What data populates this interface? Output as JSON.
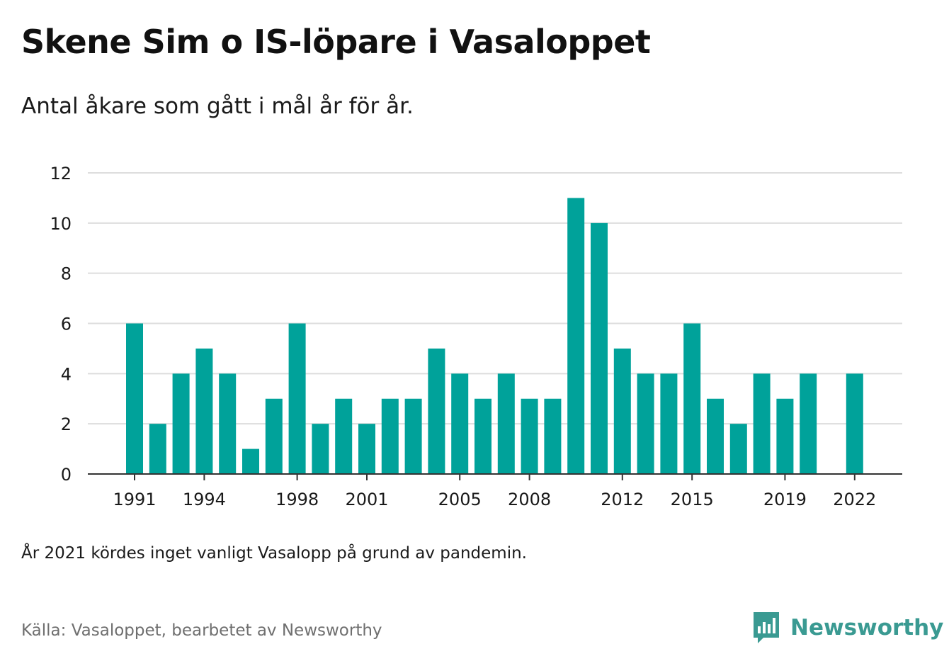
{
  "header": {
    "title": "Skene Sim o IS-löpare i Vasaloppet",
    "subtitle": "Antal åkare som gått i mål år för år."
  },
  "footer": {
    "note": "År 2021 kördes inget vanligt Vasalopp på grund av pandemin.",
    "source": "Källa: Vasaloppet, bearbetet av Newsworthy",
    "brand": "Newsworthy",
    "brand_icon": "newsworthy-logo-icon"
  },
  "colors": {
    "bar": "#00a29a",
    "grid": "#dddddd",
    "axis": "#333333",
    "brand": "#3a9a92"
  },
  "chart_data": {
    "type": "bar",
    "categories": [
      "1991",
      "1992",
      "1993",
      "1994",
      "1995",
      "1996",
      "1997",
      "1998",
      "1999",
      "2000",
      "2001",
      "2002",
      "2003",
      "2004",
      "2005",
      "2006",
      "2007",
      "2008",
      "2009",
      "2010",
      "2011",
      "2012",
      "2013",
      "2014",
      "2015",
      "2016",
      "2017",
      "2018",
      "2019",
      "2020",
      "2021",
      "2022"
    ],
    "values": [
      6,
      2,
      4,
      5,
      4,
      1,
      3,
      6,
      2,
      3,
      2,
      3,
      3,
      5,
      4,
      3,
      4,
      3,
      3,
      11,
      10,
      5,
      4,
      4,
      6,
      3,
      2,
      4,
      3,
      4,
      0,
      4
    ],
    "x_tick_labels": [
      "1991",
      "1994",
      "1998",
      "2001",
      "2005",
      "2008",
      "2012",
      "2015",
      "2019",
      "2022"
    ],
    "y_ticks": [
      0,
      2,
      4,
      6,
      8,
      10,
      12
    ],
    "ylim": [
      0,
      12
    ],
    "grid": true,
    "title": "Skene Sim o IS-löpare i Vasaloppet",
    "subtitle": "Antal åkare som gått i mål år för år.",
    "xlabel": "",
    "ylabel": ""
  }
}
